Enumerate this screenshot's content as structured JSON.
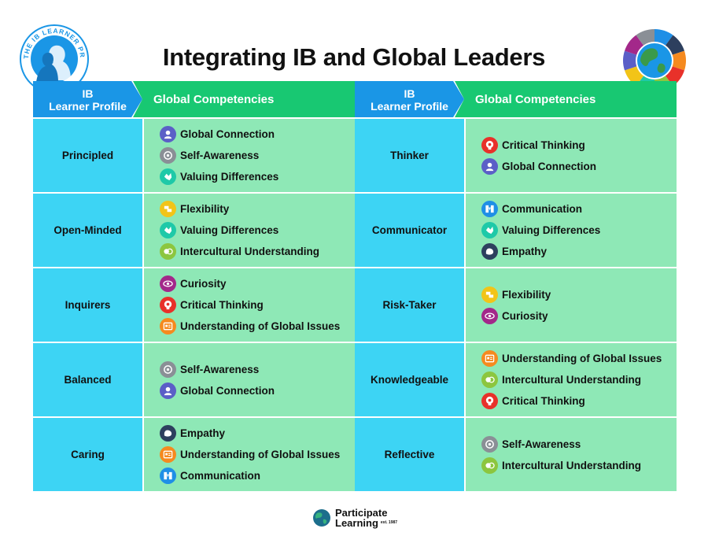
{
  "title": "Integrating IB and Global Leaders",
  "ib_logo_text": "THE IB LEARNER PROFILE",
  "colors": {
    "header_blue": "#1a96e6",
    "header_green": "#18c872",
    "ib_cell": "#3dd4f4",
    "gc_cell": "#8ee8b6"
  },
  "icons": {
    "Global Connection": {
      "name": "global-connection-icon",
      "color": "#5b5fc7"
    },
    "Self-Awareness": {
      "name": "self-awareness-icon",
      "color": "#8a8f96"
    },
    "Valuing Differences": {
      "name": "valuing-differences-icon",
      "color": "#1ec9a8"
    },
    "Flexibility": {
      "name": "flexibility-icon",
      "color": "#f2c418"
    },
    "Intercultural Understanding": {
      "name": "intercultural-understanding-icon",
      "color": "#8cc63f"
    },
    "Curiosity": {
      "name": "curiosity-icon",
      "color": "#a3288a"
    },
    "Critical Thinking": {
      "name": "critical-thinking-icon",
      "color": "#e8312a"
    },
    "Understanding of Global Issues": {
      "name": "global-issues-icon",
      "color": "#f58a1f"
    },
    "Empathy": {
      "name": "empathy-icon",
      "color": "#2d3f5e"
    },
    "Communication": {
      "name": "communication-icon",
      "color": "#1f8fe6"
    }
  },
  "tables": [
    {
      "header_ib": "IB\nLearner Profile",
      "header_gc": "Global Competencies",
      "rows": [
        {
          "profile": "Principled",
          "competencies": [
            "Global Connection",
            "Self-Awareness",
            "Valuing Differences"
          ]
        },
        {
          "profile": "Open-Minded",
          "competencies": [
            "Flexibility",
            "Valuing Differences",
            "Intercultural Understanding"
          ]
        },
        {
          "profile": "Inquirers",
          "competencies": [
            "Curiosity",
            "Critical Thinking",
            "Understanding of Global Issues"
          ]
        },
        {
          "profile": "Balanced",
          "competencies": [
            "Self-Awareness",
            "Global Connection"
          ]
        },
        {
          "profile": "Caring",
          "competencies": [
            "Empathy",
            "Understanding of Global Issues",
            "Communication"
          ]
        }
      ]
    },
    {
      "header_ib": "IB\nLearner Profile",
      "header_gc": "Global Competencies",
      "rows": [
        {
          "profile": "Thinker",
          "competencies": [
            "Critical Thinking",
            "Global Connection"
          ]
        },
        {
          "profile": "Communicator",
          "competencies": [
            "Communication",
            "Valuing Differences",
            "Empathy"
          ]
        },
        {
          "profile": "Risk-Taker",
          "competencies": [
            "Flexibility",
            "Curiosity"
          ]
        },
        {
          "profile": "Knowledgeable",
          "competencies": [
            "Understanding of Global Issues",
            "Intercultural Understanding",
            "Critical Thinking"
          ]
        },
        {
          "profile": "Reflective",
          "competencies": [
            "Self-Awareness",
            "Intercultural Understanding"
          ]
        }
      ]
    }
  ],
  "footer": {
    "line1": "Participate",
    "line2": "Learning",
    "est": "est. 1987"
  }
}
